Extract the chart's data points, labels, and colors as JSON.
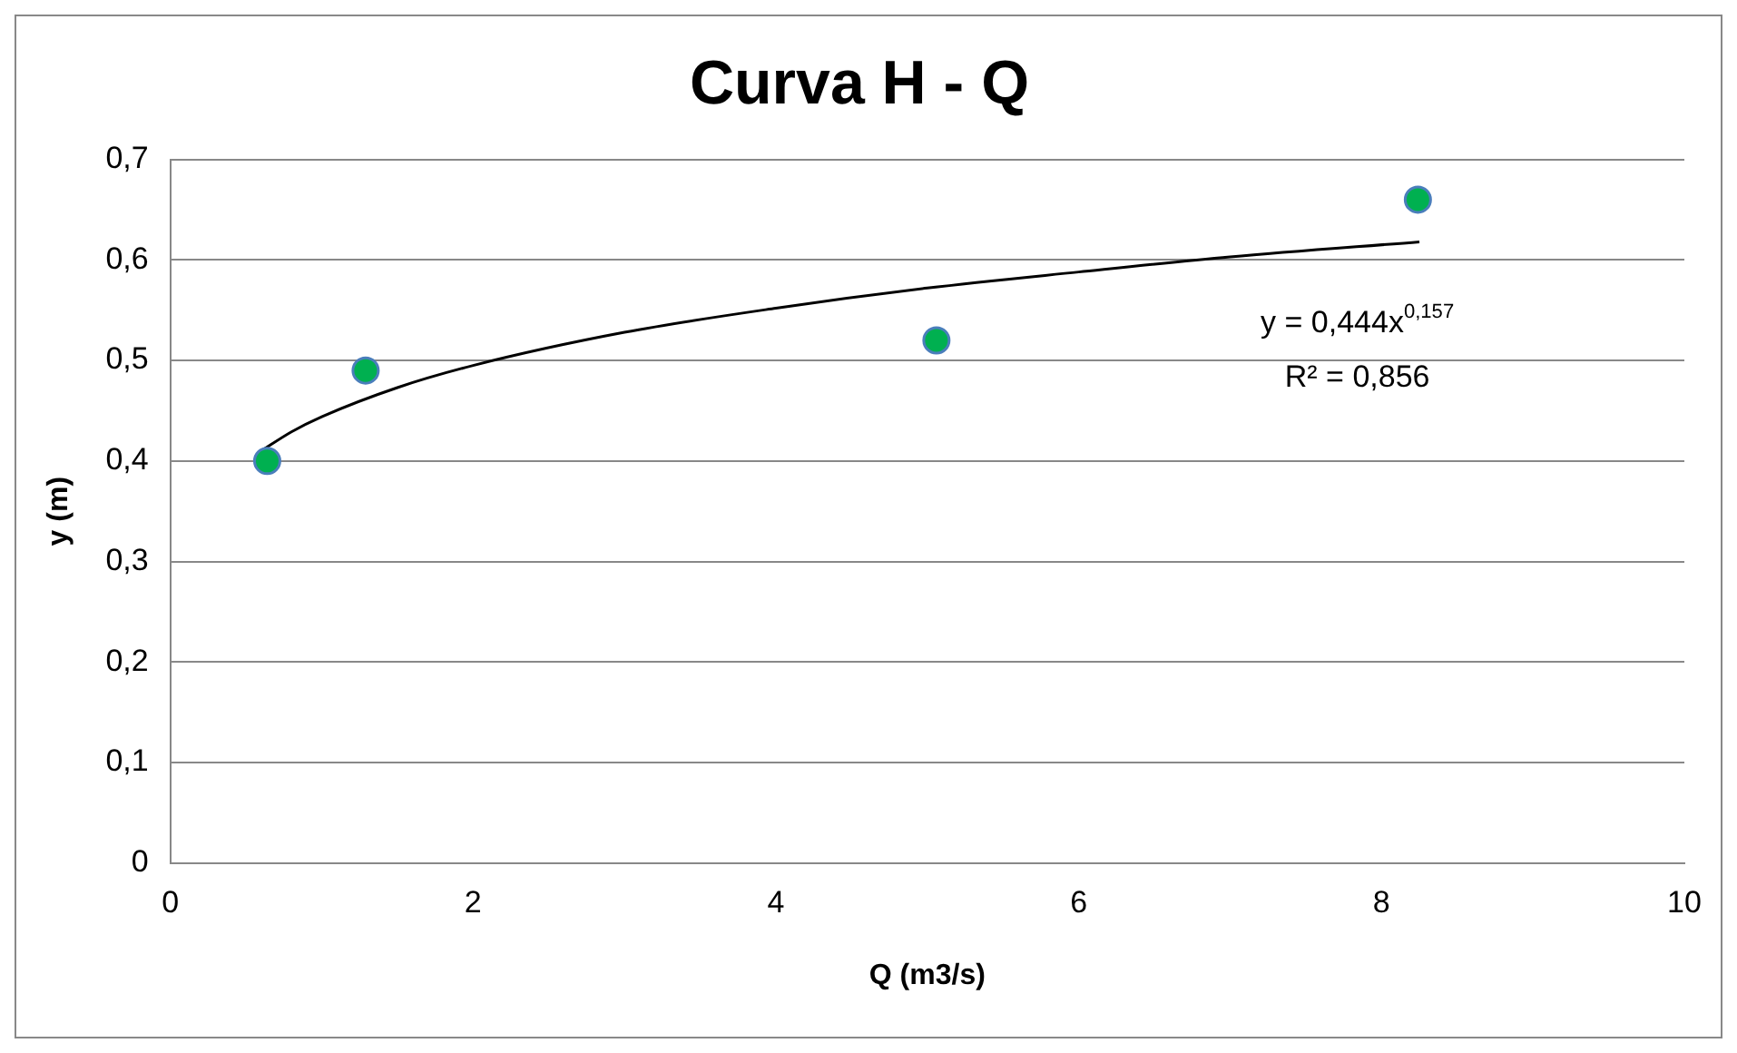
{
  "chart_data": {
    "type": "scatter",
    "title": "Curva H - Q",
    "xlabel": "Q (m3/s)",
    "ylabel": "y (m)",
    "x": [
      0.64,
      1.29,
      5.06,
      8.24
    ],
    "series": [
      {
        "color": "#00b050",
        "marker": "circle",
        "values": [
          0.4,
          0.49,
          0.52,
          0.66
        ]
      },
      {
        "type": "line",
        "color": "#000000",
        "marker": "none",
        "x": [
          0.6,
          0.8,
          1,
          1.5,
          2,
          3,
          4,
          5,
          6,
          7,
          8.25
        ],
        "values": [
          0.41,
          0.429,
          0.444,
          0.473,
          0.495,
          0.528,
          0.552,
          0.572,
          0.588,
          0.603,
          0.618
        ]
      }
    ],
    "xlim": [
      0,
      10
    ],
    "xticks": [
      0,
      2,
      4,
      6,
      8,
      10
    ],
    "ylim": [
      0,
      0.7
    ],
    "yticks": [
      0,
      {
        "value": 0.1,
        "label": "0,1"
      },
      {
        "value": 0.2,
        "label": "0,2"
      },
      {
        "value": 0.3,
        "label": "0,3"
      },
      {
        "value": 0.4,
        "label": "0,4"
      },
      {
        "value": 0.5,
        "label": "0,5"
      },
      {
        "value": 0.6,
        "label": "0,6"
      },
      {
        "value": 0.7,
        "label": "0,7"
      }
    ],
    "grid": "y",
    "legend": false,
    "line_style": "solid",
    "annotations": [
      "y = 0,444x$^{0,157}$",
      "R² = 0,856"
    ]
  }
}
